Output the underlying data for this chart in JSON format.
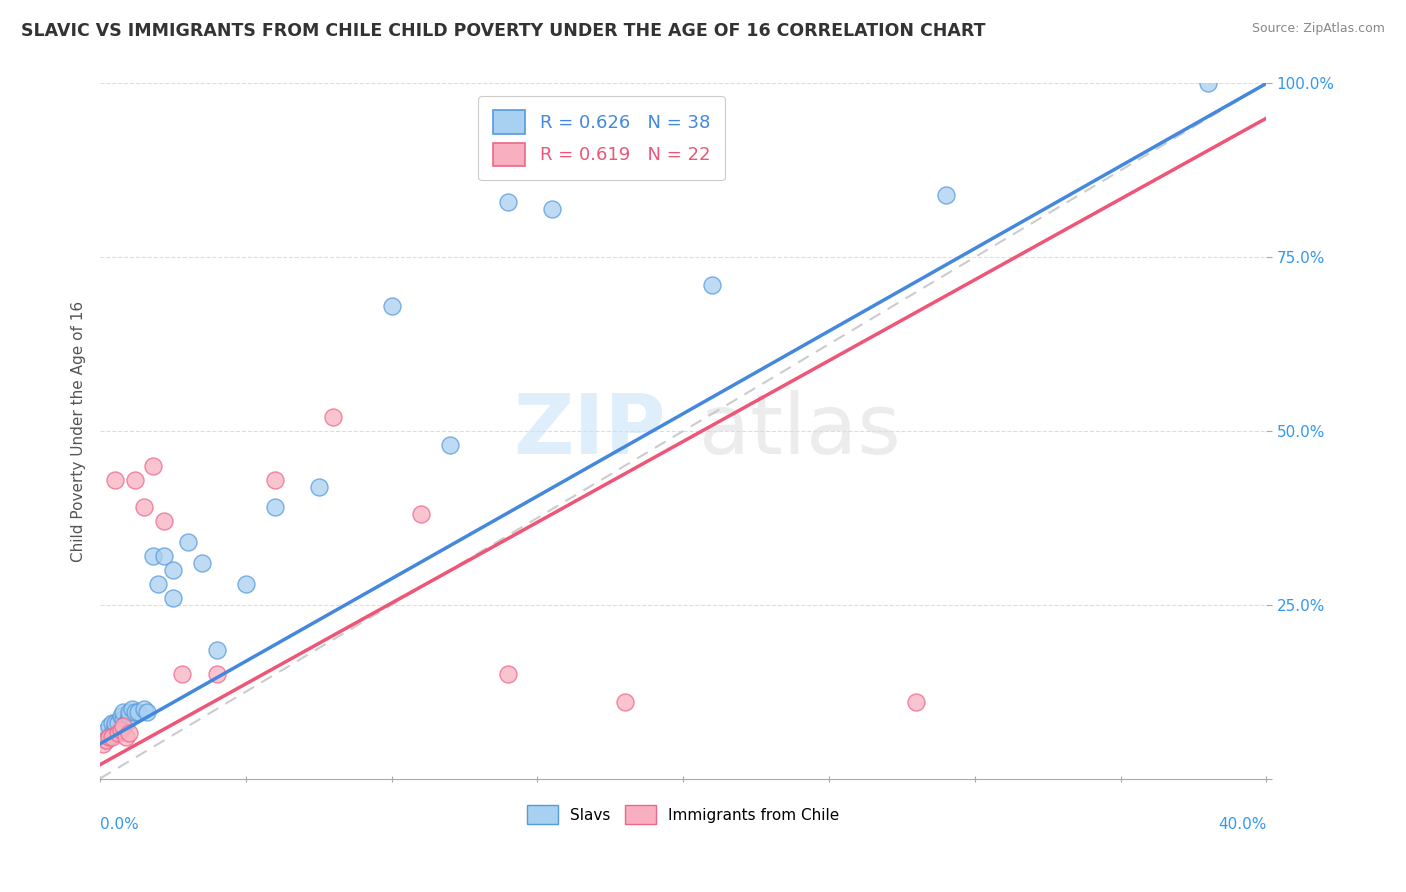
{
  "title": "SLAVIC VS IMMIGRANTS FROM CHILE CHILD POVERTY UNDER THE AGE OF 16 CORRELATION CHART",
  "source": "Source: ZipAtlas.com",
  "ylabel": "Child Poverty Under the Age of 16",
  "slavs_R": 0.626,
  "slavs_N": 38,
  "chile_R": 0.619,
  "chile_N": 22,
  "slavs_color": "#A8D0F0",
  "chile_color": "#F8B0C0",
  "slavs_edge_color": "#5599DD",
  "chile_edge_color": "#EE6688",
  "slavs_line_color": "#4488DD",
  "chile_line_color": "#EE5577",
  "ref_line_color": "#CCCCCC",
  "xlim": [
    0.0,
    0.4
  ],
  "ylim": [
    0.0,
    1.0
  ],
  "slavs_x": [
    0.001,
    0.002,
    0.003,
    0.003,
    0.004,
    0.004,
    0.005,
    0.005,
    0.006,
    0.007,
    0.008,
    0.008,
    0.009,
    0.01,
    0.01,
    0.011,
    0.012,
    0.013,
    0.015,
    0.016,
    0.018,
    0.02,
    0.022,
    0.025,
    0.025,
    0.03,
    0.035,
    0.04,
    0.05,
    0.06,
    0.075,
    0.1,
    0.12,
    0.14,
    0.155,
    0.21,
    0.29,
    0.38
  ],
  "slavs_y": [
    0.065,
    0.055,
    0.06,
    0.075,
    0.065,
    0.08,
    0.075,
    0.08,
    0.08,
    0.09,
    0.085,
    0.095,
    0.08,
    0.09,
    0.095,
    0.1,
    0.095,
    0.095,
    0.1,
    0.095,
    0.32,
    0.28,
    0.32,
    0.26,
    0.3,
    0.34,
    0.31,
    0.185,
    0.28,
    0.39,
    0.42,
    0.68,
    0.48,
    0.83,
    0.82,
    0.71,
    0.84,
    1.0
  ],
  "chile_x": [
    0.001,
    0.002,
    0.003,
    0.004,
    0.005,
    0.006,
    0.007,
    0.008,
    0.009,
    0.01,
    0.012,
    0.015,
    0.018,
    0.022,
    0.028,
    0.04,
    0.06,
    0.08,
    0.11,
    0.14,
    0.18,
    0.28
  ],
  "chile_y": [
    0.05,
    0.055,
    0.06,
    0.06,
    0.43,
    0.065,
    0.07,
    0.075,
    0.06,
    0.065,
    0.43,
    0.39,
    0.45,
    0.37,
    0.15,
    0.15,
    0.43,
    0.52,
    0.38,
    0.15,
    0.11,
    0.11
  ]
}
